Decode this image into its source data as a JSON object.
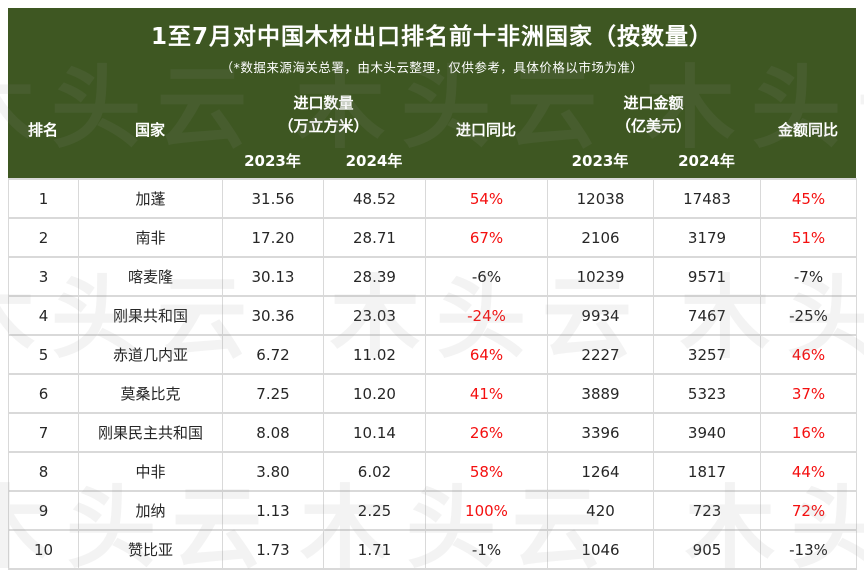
{
  "colors": {
    "header_background": "#3e5722",
    "highlight_red": "#f40f0f",
    "text_dark": "#262626",
    "grid_gray": "#d9d9d9"
  },
  "watermark": {
    "text": "木头云"
  },
  "chart_data": {
    "type": "table",
    "title": "1至7月对中国木材出口排名前十非洲国家（按数量）",
    "subtitle": "（*数据来源海关总署，由木头云整理，仅供参考，具体价格以市场为准）",
    "header": {
      "rank": "排名",
      "country": "国家",
      "qty_group": [
        "进口数量",
        "（万立方米）"
      ],
      "qty_yoy": "进口同比",
      "amt_group": [
        "进口金额",
        "（亿美元）"
      ],
      "amt_yoy": "金额同比",
      "years": [
        "2023年",
        "2024年"
      ]
    },
    "rows": [
      {
        "rank": "1",
        "country": "加蓬",
        "qty_2023": "31.56",
        "qty_2024": "48.52",
        "qty_yoy": "54%",
        "qty_yoy_highlight": true,
        "amt_2023": "12038",
        "amt_2024": "17483",
        "amt_yoy": "45%",
        "amt_yoy_highlight": true
      },
      {
        "rank": "2",
        "country": "南非",
        "qty_2023": "17.20",
        "qty_2024": "28.71",
        "qty_yoy": "67%",
        "qty_yoy_highlight": true,
        "amt_2023": "2106",
        "amt_2024": "3179",
        "amt_yoy": "51%",
        "amt_yoy_highlight": true
      },
      {
        "rank": "3",
        "country": "喀麦隆",
        "qty_2023": "30.13",
        "qty_2024": "28.39",
        "qty_yoy": "-6%",
        "qty_yoy_highlight": false,
        "amt_2023": "10239",
        "amt_2024": "9571",
        "amt_yoy": "-7%",
        "amt_yoy_highlight": false
      },
      {
        "rank": "4",
        "country": "刚果共和国",
        "qty_2023": "30.36",
        "qty_2024": "23.03",
        "qty_yoy": "-24%",
        "qty_yoy_highlight": true,
        "amt_2023": "9934",
        "amt_2024": "7467",
        "amt_yoy": "-25%",
        "amt_yoy_highlight": false
      },
      {
        "rank": "5",
        "country": "赤道几内亚",
        "qty_2023": "6.72",
        "qty_2024": "11.02",
        "qty_yoy": "64%",
        "qty_yoy_highlight": true,
        "amt_2023": "2227",
        "amt_2024": "3257",
        "amt_yoy": "46%",
        "amt_yoy_highlight": true
      },
      {
        "rank": "6",
        "country": "莫桑比克",
        "qty_2023": "7.25",
        "qty_2024": "10.20",
        "qty_yoy": "41%",
        "qty_yoy_highlight": true,
        "amt_2023": "3889",
        "amt_2024": "5323",
        "amt_yoy": "37%",
        "amt_yoy_highlight": true
      },
      {
        "rank": "7",
        "country": "刚果民主共和国",
        "qty_2023": "8.08",
        "qty_2024": "10.14",
        "qty_yoy": "26%",
        "qty_yoy_highlight": true,
        "amt_2023": "3396",
        "amt_2024": "3940",
        "amt_yoy": "16%",
        "amt_yoy_highlight": true
      },
      {
        "rank": "8",
        "country": "中非",
        "qty_2023": "3.80",
        "qty_2024": "6.02",
        "qty_yoy": "58%",
        "qty_yoy_highlight": true,
        "amt_2023": "1264",
        "amt_2024": "1817",
        "amt_yoy": "44%",
        "amt_yoy_highlight": true
      },
      {
        "rank": "9",
        "country": "加纳",
        "qty_2023": "1.13",
        "qty_2024": "2.25",
        "qty_yoy": "100%",
        "qty_yoy_highlight": true,
        "amt_2023": "420",
        "amt_2024": "723",
        "amt_yoy": "72%",
        "amt_yoy_highlight": true
      },
      {
        "rank": "10",
        "country": "赞比亚",
        "qty_2023": "1.73",
        "qty_2024": "1.71",
        "qty_yoy": "-1%",
        "qty_yoy_highlight": false,
        "amt_2023": "1046",
        "amt_2024": "905",
        "amt_yoy": "-13%",
        "amt_yoy_highlight": false
      }
    ]
  }
}
